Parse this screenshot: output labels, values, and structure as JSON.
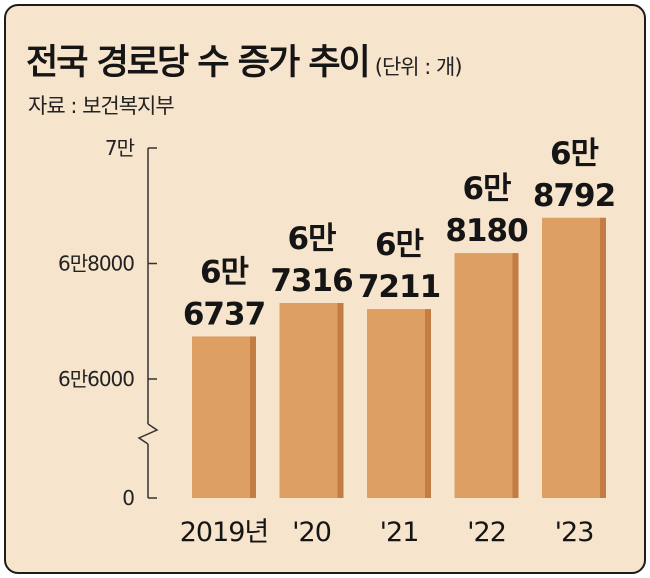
{
  "title": "전국 경로당 수 증가 추이",
  "unit": "(단위 : 개)",
  "source": "자료 : 보건복지부",
  "colors": {
    "background": "#f6e4cc",
    "bar_light": "#dea062",
    "bar_dark": "#c27c44",
    "axis": "#333333"
  },
  "chart_data": {
    "type": "bar",
    "title": "전국 경로당 수 증가 추이",
    "unit": "(단위 : 개)",
    "categories": [
      "2019년",
      "'20",
      "'21",
      "'22",
      "'23"
    ],
    "values": [
      66737,
      67316,
      67211,
      68180,
      68792
    ],
    "value_labels": [
      [
        "6만",
        "6737"
      ],
      [
        "6만",
        "7316"
      ],
      [
        "6만",
        "7211"
      ],
      [
        "6만",
        "8180"
      ],
      [
        "6만",
        "8792"
      ]
    ],
    "y_ticks": [
      {
        "value": 70000,
        "label": "7만"
      },
      {
        "value": 68000,
        "label": "6만8000"
      },
      {
        "value": 66000,
        "label": "6만6000"
      },
      {
        "value": 0,
        "label": "0"
      }
    ],
    "ylim": [
      0,
      70000
    ],
    "axis_break": "between 0 and 66000",
    "grid": false,
    "legend": "none"
  }
}
